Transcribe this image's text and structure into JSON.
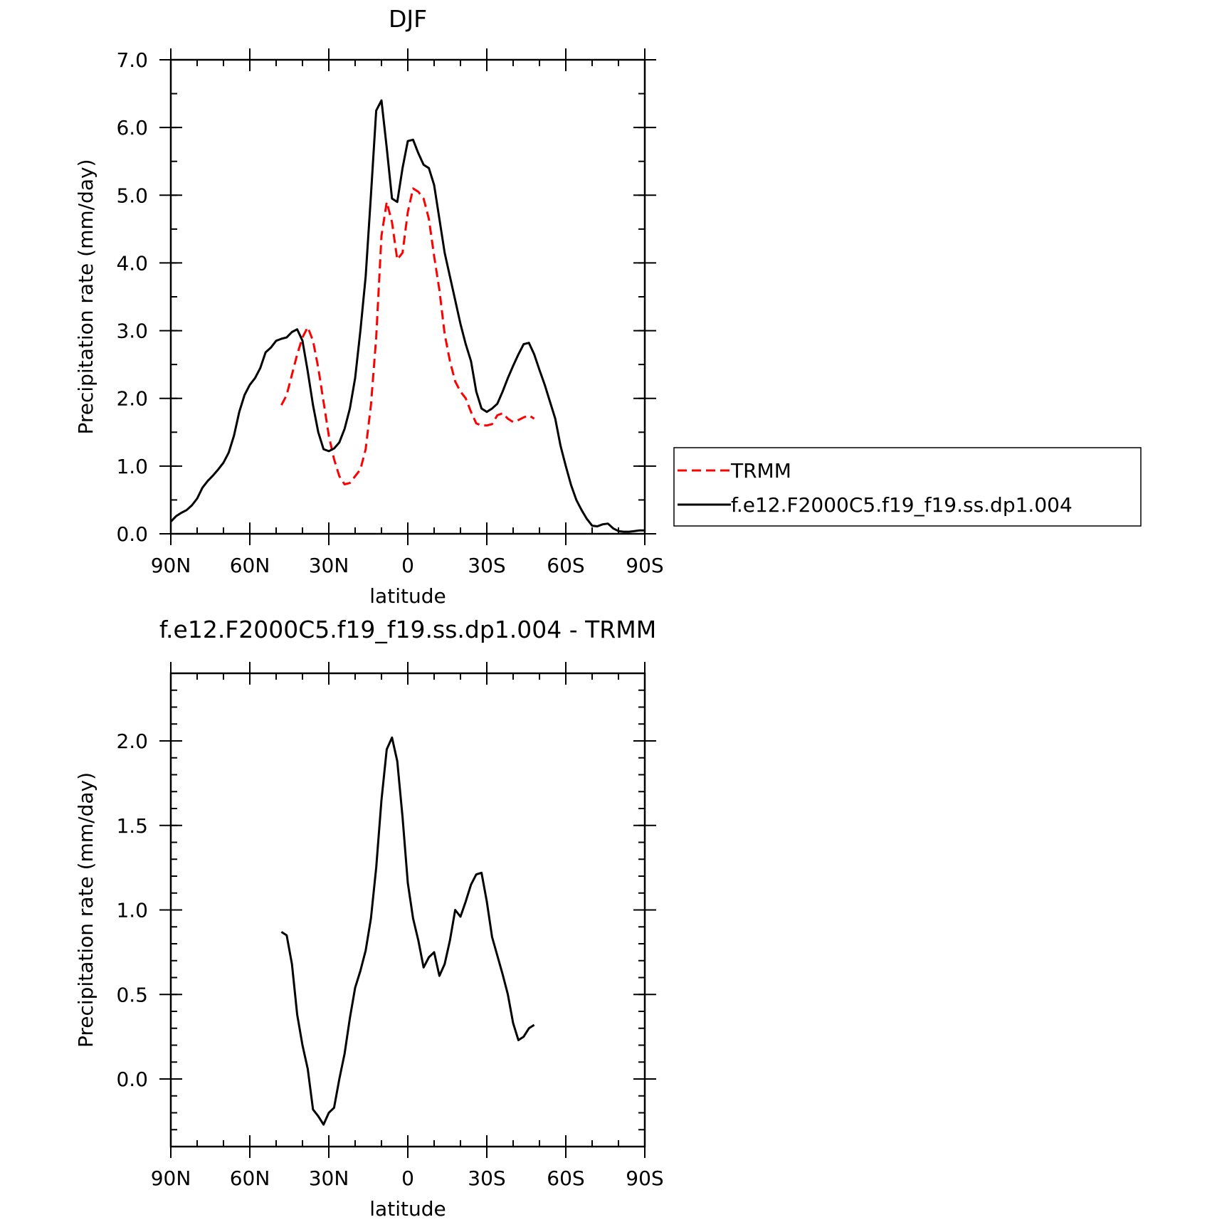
{
  "chart_data": [
    {
      "type": "line",
      "title": "DJF",
      "xlabel": "latitude",
      "ylabel": "Precipitation rate (mm/day)",
      "xlim": [
        90,
        -90
      ],
      "ylim": [
        0,
        7
      ],
      "xticks": [
        {
          "value": 90,
          "label": "90N"
        },
        {
          "value": 60,
          "label": "60N"
        },
        {
          "value": 30,
          "label": "30N"
        },
        {
          "value": 0,
          "label": "0"
        },
        {
          "value": -30,
          "label": "30S"
        },
        {
          "value": -60,
          "label": "60S"
        },
        {
          "value": -90,
          "label": "90S"
        }
      ],
      "yticks": [
        {
          "value": 0,
          "label": "0.0"
        },
        {
          "value": 1,
          "label": "1.0"
        },
        {
          "value": 2,
          "label": "2.0"
        },
        {
          "value": 3,
          "label": "3.0"
        },
        {
          "value": 4,
          "label": "4.0"
        },
        {
          "value": 5,
          "label": "5.0"
        },
        {
          "value": 6,
          "label": "6.0"
        },
        {
          "value": 7,
          "label": "7.0"
        }
      ],
      "legend": "right",
      "series": [
        {
          "name": "TRMM",
          "color": "#ff0000",
          "dash": "dashed",
          "x": [
            48.0,
            46.0,
            44.0,
            42.0,
            40.0,
            38.0,
            36.0,
            34.0,
            32.0,
            30.0,
            28.0,
            26.0,
            24.0,
            22.0,
            20.0,
            18.0,
            16.0,
            14.0,
            12.0,
            10.0,
            8.0,
            6.0,
            4.0,
            2.0,
            0.0,
            -2.0,
            -4.0,
            -6.0,
            -8.0,
            -10.0,
            -12.0,
            -14.0,
            -16.0,
            -18.0,
            -20.0,
            -22.0,
            -24.0,
            -26.0,
            -28.0,
            -30.0,
            -32.0,
            -34.0,
            -36.0,
            -38.0,
            -40.0,
            -42.0,
            -44.0,
            -46.0,
            -48.0
          ],
          "y": [
            1.9,
            2.05,
            2.35,
            2.65,
            2.9,
            3.05,
            2.85,
            2.45,
            1.95,
            1.45,
            1.1,
            0.85,
            0.73,
            0.75,
            0.85,
            0.95,
            1.25,
            1.9,
            2.9,
            4.4,
            4.9,
            4.6,
            4.05,
            4.15,
            4.75,
            5.1,
            5.05,
            4.95,
            4.65,
            4.1,
            3.6,
            2.95,
            2.55,
            2.25,
            2.1,
            2.0,
            1.8,
            1.63,
            1.6,
            1.6,
            1.62,
            1.75,
            1.78,
            1.7,
            1.65,
            1.68,
            1.72,
            1.75,
            1.7
          ]
        },
        {
          "name": "f.e12.F2000C5.f19_f19.ss.dp1.004",
          "color": "#000000",
          "dash": "solid",
          "x": [
            90.0,
            88.0,
            86.0,
            84.0,
            82.0,
            80.0,
            78.0,
            76.0,
            74.0,
            72.0,
            70.0,
            68.0,
            66.0,
            64.0,
            62.0,
            60.0,
            58.0,
            56.0,
            54.0,
            52.0,
            50.0,
            48.0,
            46.0,
            44.0,
            42.0,
            40.0,
            38.0,
            36.0,
            34.0,
            32.0,
            30.0,
            28.0,
            26.0,
            24.0,
            22.0,
            20.0,
            18.0,
            16.0,
            14.0,
            12.0,
            10.0,
            8.0,
            6.0,
            4.0,
            2.0,
            0.0,
            -2.0,
            -4.0,
            -6.0,
            -8.0,
            -10.0,
            -12.0,
            -14.0,
            -16.0,
            -18.0,
            -20.0,
            -22.0,
            -24.0,
            -26.0,
            -28.0,
            -30.0,
            -32.0,
            -34.0,
            -36.0,
            -38.0,
            -40.0,
            -42.0,
            -44.0,
            -46.0,
            -48.0,
            -50.0,
            -52.0,
            -54.0,
            -56.0,
            -58.0,
            -60.0,
            -62.0,
            -64.0,
            -66.0,
            -68.0,
            -70.0,
            -72.0,
            -74.0,
            -76.0,
            -78.0,
            -80.0,
            -82.0,
            -84.0,
            -86.0,
            -88.0,
            -90.0
          ],
          "y": [
            0.18,
            0.26,
            0.31,
            0.35,
            0.42,
            0.52,
            0.68,
            0.78,
            0.86,
            0.95,
            1.05,
            1.2,
            1.45,
            1.8,
            2.05,
            2.2,
            2.3,
            2.45,
            2.68,
            2.75,
            2.85,
            2.88,
            2.9,
            2.98,
            3.02,
            2.85,
            2.4,
            1.9,
            1.5,
            1.25,
            1.22,
            1.26,
            1.35,
            1.55,
            1.85,
            2.3,
            3.0,
            3.8,
            5.0,
            6.25,
            6.4,
            5.7,
            4.95,
            4.9,
            5.4,
            5.8,
            5.82,
            5.62,
            5.45,
            5.4,
            5.15,
            4.65,
            4.15,
            3.8,
            3.45,
            3.1,
            2.8,
            2.55,
            2.1,
            1.85,
            1.8,
            1.85,
            1.92,
            2.1,
            2.3,
            2.48,
            2.65,
            2.8,
            2.82,
            2.65,
            2.42,
            2.2,
            1.95,
            1.7,
            1.3,
            1.0,
            0.72,
            0.5,
            0.35,
            0.22,
            0.12,
            0.11,
            0.14,
            0.15,
            0.08,
            0.04,
            0.03,
            0.03,
            0.04,
            0.05,
            0.05
          ]
        }
      ]
    },
    {
      "type": "line",
      "title": "f.e12.F2000C5.f19_f19.ss.dp1.004 - TRMM",
      "xlabel": "latitude",
      "ylabel": "Precipitation rate (mm/day)",
      "xlim": [
        90,
        -90
      ],
      "ylim": [
        -0.4,
        2.4
      ],
      "xticks": [
        {
          "value": 90,
          "label": "90N"
        },
        {
          "value": 60,
          "label": "60N"
        },
        {
          "value": 30,
          "label": "30N"
        },
        {
          "value": 0,
          "label": "0"
        },
        {
          "value": -30,
          "label": "30S"
        },
        {
          "value": -60,
          "label": "60S"
        },
        {
          "value": -90,
          "label": "90S"
        }
      ],
      "yticks": [
        {
          "value": 0.0,
          "label": "0.0"
        },
        {
          "value": 0.5,
          "label": "0.5"
        },
        {
          "value": 1.0,
          "label": "1.0"
        },
        {
          "value": 1.5,
          "label": "1.5"
        },
        {
          "value": 2.0,
          "label": "2.0"
        }
      ],
      "series": [
        {
          "color": "#000000",
          "dash": "solid",
          "x": [
            48.0,
            46.0,
            44.0,
            42.0,
            40.0,
            38.0,
            36.0,
            34.0,
            32.0,
            30.0,
            28.0,
            26.0,
            24.0,
            22.0,
            20.0,
            18.0,
            16.0,
            14.0,
            12.0,
            10.0,
            8.0,
            6.0,
            4.0,
            2.0,
            0.0,
            -2.0,
            -4.0,
            -6.0,
            -8.0,
            -10.0,
            -12.0,
            -14.0,
            -16.0,
            -18.0,
            -20.0,
            -22.0,
            -24.0,
            -26.0,
            -28.0,
            -30.0,
            -32.0,
            -34.0,
            -36.0,
            -38.0,
            -40.0,
            -42.0,
            -44.0,
            -46.0,
            -48.0
          ],
          "y": [
            0.87,
            0.85,
            0.68,
            0.38,
            0.2,
            0.06,
            -0.18,
            -0.22,
            -0.27,
            -0.2,
            -0.17,
            0.0,
            0.15,
            0.36,
            0.54,
            0.64,
            0.76,
            0.95,
            1.25,
            1.65,
            1.95,
            2.02,
            1.88,
            1.55,
            1.16,
            0.95,
            0.82,
            0.66,
            0.72,
            0.75,
            0.61,
            0.68,
            0.82,
            1.0,
            0.96,
            1.05,
            1.15,
            1.21,
            1.22,
            1.05,
            0.84,
            0.73,
            0.62,
            0.5,
            0.33,
            0.23,
            0.25,
            0.3,
            0.32
          ]
        }
      ]
    }
  ]
}
